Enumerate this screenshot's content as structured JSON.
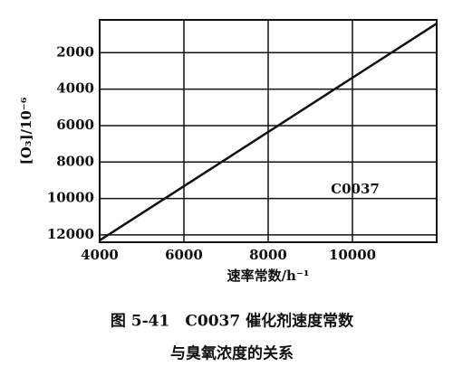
{
  "chart_data": {
    "type": "line",
    "x_label": "速率常数/h⁻¹",
    "y_label": "[O₃]/10⁻⁶",
    "annotation": "C0037",
    "caption": [
      "图 5-41　C0037 催化剂速度常数",
      "与臭氧浓度的关系"
    ],
    "x": [
      4000,
      12000
    ],
    "series": [
      {
        "color": "#111111",
        "values": [
          12300,
          400
        ]
      }
    ],
    "xlim": [
      4000,
      12000
    ],
    "xticks": [
      4000,
      6000,
      8000,
      10000
    ],
    "ylim": [
      12400,
      200
    ],
    "yticks": [
      2000,
      4000,
      6000,
      8000,
      10000,
      12000
    ],
    "grid": true
  }
}
